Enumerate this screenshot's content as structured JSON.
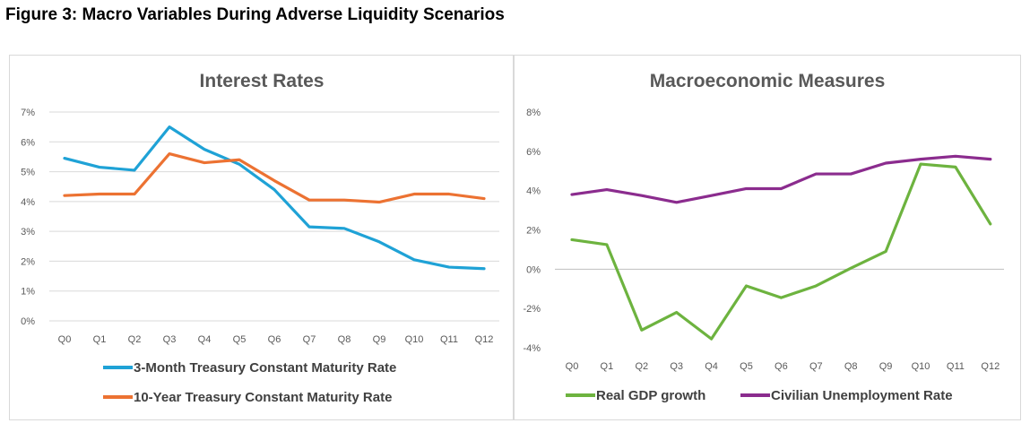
{
  "figure_title": "Figure 3: Macro Variables During Adverse Liquidity Scenarios",
  "chart_data": [
    {
      "type": "line",
      "title": "Interest Rates",
      "categories": [
        "Q0",
        "Q1",
        "Q2",
        "Q3",
        "Q4",
        "Q5",
        "Q6",
        "Q7",
        "Q8",
        "Q9",
        "Q10",
        "Q11",
        "Q12"
      ],
      "ylim": [
        0,
        7
      ],
      "yticks": [
        0,
        1,
        2,
        3,
        4,
        5,
        6,
        7
      ],
      "ytick_labels": [
        "0%",
        "1%",
        "2%",
        "3%",
        "4%",
        "5%",
        "6%",
        "7%"
      ],
      "grid": true,
      "legend_position": "bottom",
      "series": [
        {
          "name": "3-Month Treasury Constant Maturity Rate",
          "color": "#1fa2d6",
          "values": [
            5.45,
            5.15,
            5.05,
            6.5,
            5.75,
            5.25,
            4.4,
            3.15,
            3.1,
            2.65,
            2.05,
            1.8,
            1.75
          ]
        },
        {
          "name": "10-Year Treasury Constant Maturity Rate",
          "color": "#ec7232",
          "values": [
            4.2,
            4.25,
            4.25,
            5.6,
            5.3,
            5.4,
            4.7,
            4.05,
            4.05,
            3.98,
            4.25,
            4.25,
            4.1
          ]
        }
      ]
    },
    {
      "type": "line",
      "title": "Macroeconomic Measures",
      "categories": [
        "Q0",
        "Q1",
        "Q2",
        "Q3",
        "Q4",
        "Q5",
        "Q6",
        "Q7",
        "Q8",
        "Q9",
        "Q10",
        "Q11",
        "Q12"
      ],
      "ylim": [
        -4,
        8
      ],
      "yticks": [
        -4,
        -2,
        0,
        2,
        4,
        6,
        8
      ],
      "ytick_labels": [
        "-4%",
        "-2%",
        "0%",
        "2%",
        "4%",
        "6%",
        "8%"
      ],
      "grid": false,
      "legend_position": "bottom",
      "series": [
        {
          "name": "Real GDP growth",
          "color": "#6db33f",
          "values": [
            1.5,
            1.25,
            -3.1,
            -2.2,
            -3.55,
            -0.85,
            -1.45,
            -0.85,
            0.05,
            0.9,
            5.35,
            5.2,
            2.3
          ]
        },
        {
          "name": "Civilian Unemployment Rate",
          "color": "#8b2c8e",
          "values": [
            3.8,
            4.05,
            3.75,
            3.4,
            3.75,
            4.1,
            4.1,
            4.85,
            4.85,
            5.4,
            5.6,
            5.75,
            5.6
          ]
        }
      ]
    }
  ]
}
